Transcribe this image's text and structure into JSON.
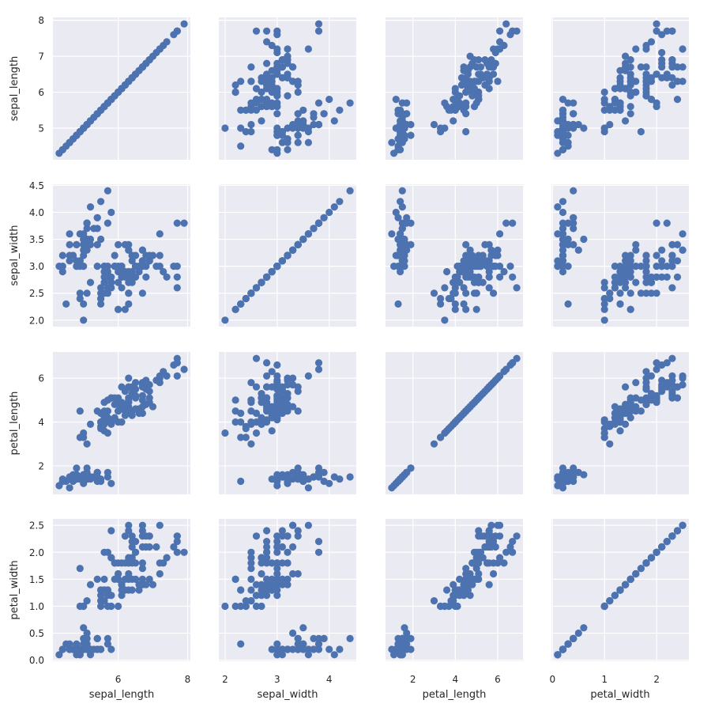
{
  "chart_data": {
    "type": "scatter",
    "layout": "pair-grid 4x4",
    "grid": true,
    "background_color": "#eaeaf2",
    "marker_color": "#4c72b0",
    "variables": [
      "sepal_length",
      "sepal_width",
      "petal_length",
      "petal_width"
    ],
    "limits": {
      "sepal_length": [
        4.12,
        8.08
      ],
      "sepal_width": [
        1.88,
        4.52
      ],
      "petal_length": [
        0.705,
        7.195
      ],
      "petal_width": [
        -0.02,
        2.62
      ]
    },
    "ticks": {
      "x": {
        "sepal_length": [
          "6",
          "8"
        ],
        "sepal_width": [
          "2",
          "3",
          "4"
        ],
        "petal_length": [
          "2",
          "4",
          "6"
        ],
        "petal_width": [
          "0",
          "1",
          "2"
        ]
      },
      "y": {
        "sepal_length": [
          "5",
          "6",
          "7",
          "8"
        ],
        "sepal_width": [
          "2.0",
          "2.5",
          "3.0",
          "3.5",
          "4.0",
          "4.5"
        ],
        "petal_length": [
          "2",
          "4",
          "6"
        ],
        "petal_width": [
          "0.0",
          "0.5",
          "1.0",
          "1.5",
          "2.0",
          "2.5"
        ]
      }
    },
    "data": {
      "sepal_length": [
        5.1,
        4.9,
        4.7,
        4.6,
        5.0,
        5.4,
        4.6,
        5.0,
        4.4,
        4.9,
        5.4,
        4.8,
        4.8,
        4.3,
        5.8,
        5.7,
        5.4,
        5.1,
        5.7,
        5.1,
        5.4,
        5.1,
        4.6,
        5.1,
        4.8,
        5.0,
        5.0,
        5.2,
        5.2,
        4.7,
        4.8,
        5.4,
        5.2,
        5.5,
        4.9,
        5.0,
        5.5,
        4.9,
        4.4,
        5.1,
        5.0,
        4.5,
        4.4,
        5.0,
        5.1,
        4.8,
        5.1,
        4.6,
        5.3,
        5.0,
        7.0,
        6.4,
        6.9,
        5.5,
        6.5,
        5.7,
        6.3,
        4.9,
        6.6,
        5.2,
        5.0,
        5.9,
        6.0,
        6.1,
        5.6,
        6.7,
        5.6,
        5.8,
        6.2,
        5.6,
        5.9,
        6.1,
        6.3,
        6.1,
        6.4,
        6.6,
        6.8,
        6.7,
        6.0,
        5.7,
        5.5,
        5.5,
        5.8,
        6.0,
        5.4,
        6.0,
        6.7,
        6.3,
        5.6,
        5.5,
        5.5,
        6.1,
        5.8,
        5.0,
        5.6,
        5.7,
        5.7,
        6.2,
        5.1,
        5.7,
        6.3,
        5.8,
        7.1,
        6.3,
        6.5,
        7.6,
        4.9,
        7.3,
        6.7,
        7.2,
        6.5,
        6.4,
        6.8,
        5.7,
        5.8,
        6.4,
        6.5,
        7.7,
        7.7,
        6.0,
        6.9,
        5.6,
        7.7,
        6.3,
        6.7,
        7.2,
        6.2,
        6.1,
        6.4,
        7.2,
        7.4,
        7.9,
        6.4,
        6.3,
        6.1,
        7.7,
        6.3,
        6.4,
        6.0,
        6.9,
        6.7,
        6.9,
        5.8,
        6.8,
        6.7,
        6.7,
        6.3,
        6.5,
        6.2,
        5.9
      ],
      "sepal_width": [
        3.5,
        3.0,
        3.2,
        3.1,
        3.6,
        3.9,
        3.4,
        3.4,
        2.9,
        3.1,
        3.7,
        3.4,
        3.0,
        3.0,
        4.0,
        4.4,
        3.9,
        3.5,
        3.8,
        3.8,
        3.4,
        3.7,
        3.6,
        3.3,
        3.4,
        3.0,
        3.4,
        3.5,
        3.4,
        3.2,
        3.1,
        3.4,
        4.1,
        4.2,
        3.1,
        3.2,
        3.5,
        3.6,
        3.0,
        3.4,
        3.5,
        2.3,
        3.2,
        3.5,
        3.8,
        3.0,
        3.8,
        3.2,
        3.7,
        3.3,
        3.2,
        3.2,
        3.1,
        2.3,
        2.8,
        2.8,
        3.3,
        2.4,
        2.9,
        2.7,
        2.0,
        3.0,
        2.2,
        2.9,
        2.9,
        3.1,
        3.0,
        2.7,
        2.2,
        2.5,
        3.2,
        2.8,
        2.5,
        2.8,
        2.9,
        3.0,
        2.8,
        3.0,
        2.9,
        2.6,
        2.4,
        2.4,
        2.7,
        2.7,
        3.0,
        3.4,
        3.1,
        2.3,
        3.0,
        2.5,
        2.6,
        3.0,
        2.6,
        2.3,
        2.7,
        3.0,
        2.9,
        2.9,
        2.5,
        2.8,
        3.3,
        2.7,
        3.0,
        2.9,
        3.0,
        3.0,
        2.5,
        2.9,
        2.5,
        3.6,
        3.2,
        2.7,
        3.0,
        2.5,
        2.8,
        3.2,
        3.0,
        3.8,
        2.6,
        2.2,
        3.2,
        2.8,
        2.8,
        2.7,
        3.3,
        3.2,
        2.8,
        3.0,
        2.8,
        3.0,
        2.8,
        3.8,
        2.8,
        2.8,
        2.6,
        3.0,
        3.4,
        3.1,
        3.0,
        3.1,
        3.1,
        3.1,
        2.7,
        3.2,
        3.3,
        3.0,
        2.5,
        3.0,
        3.4,
        3.0
      ],
      "petal_length": [
        1.4,
        1.4,
        1.3,
        1.5,
        1.4,
        1.7,
        1.4,
        1.5,
        1.4,
        1.5,
        1.5,
        1.6,
        1.4,
        1.1,
        1.2,
        1.5,
        1.3,
        1.4,
        1.7,
        1.5,
        1.7,
        1.5,
        1.0,
        1.7,
        1.9,
        1.6,
        1.6,
        1.5,
        1.4,
        1.6,
        1.6,
        1.5,
        1.5,
        1.4,
        1.5,
        1.2,
        1.3,
        1.4,
        1.3,
        1.5,
        1.3,
        1.3,
        1.3,
        1.6,
        1.9,
        1.4,
        1.6,
        1.4,
        1.5,
        1.4,
        4.7,
        4.5,
        4.9,
        4.0,
        4.6,
        4.5,
        4.7,
        3.3,
        4.6,
        3.9,
        3.5,
        4.2,
        4.0,
        4.7,
        3.6,
        4.4,
        4.5,
        4.1,
        4.5,
        3.9,
        4.8,
        4.0,
        4.9,
        4.7,
        4.3,
        4.4,
        4.8,
        5.0,
        4.5,
        3.5,
        3.8,
        3.7,
        3.9,
        5.1,
        4.5,
        4.5,
        4.7,
        4.4,
        4.1,
        4.0,
        4.4,
        4.6,
        4.0,
        3.3,
        4.2,
        4.2,
        4.2,
        4.3,
        3.0,
        4.1,
        6.0,
        5.1,
        5.9,
        5.6,
        5.8,
        6.6,
        4.5,
        6.3,
        5.8,
        6.1,
        5.1,
        5.3,
        5.5,
        5.0,
        5.1,
        5.3,
        5.5,
        6.7,
        6.9,
        5.0,
        5.7,
        4.9,
        6.7,
        4.9,
        5.7,
        6.0,
        4.8,
        4.9,
        5.6,
        5.8,
        6.1,
        6.4,
        5.6,
        5.1,
        5.6,
        6.1,
        5.6,
        5.5,
        4.8,
        5.4,
        5.6,
        5.1,
        5.1,
        5.9,
        5.7,
        5.2,
        5.0,
        5.2,
        5.4,
        5.1
      ],
      "petal_width": [
        0.2,
        0.2,
        0.2,
        0.2,
        0.2,
        0.4,
        0.3,
        0.2,
        0.2,
        0.1,
        0.2,
        0.2,
        0.1,
        0.1,
        0.2,
        0.4,
        0.4,
        0.3,
        0.3,
        0.3,
        0.2,
        0.4,
        0.2,
        0.5,
        0.2,
        0.2,
        0.4,
        0.2,
        0.2,
        0.2,
        0.2,
        0.4,
        0.1,
        0.2,
        0.2,
        0.2,
        0.2,
        0.1,
        0.2,
        0.2,
        0.3,
        0.3,
        0.2,
        0.6,
        0.4,
        0.3,
        0.2,
        0.2,
        0.2,
        0.2,
        1.4,
        1.5,
        1.5,
        1.3,
        1.5,
        1.3,
        1.6,
        1.0,
        1.3,
        1.4,
        1.0,
        1.5,
        1.0,
        1.4,
        1.3,
        1.4,
        1.5,
        1.0,
        1.5,
        1.1,
        1.8,
        1.3,
        1.5,
        1.2,
        1.3,
        1.4,
        1.4,
        1.7,
        1.5,
        1.0,
        1.1,
        1.0,
        1.2,
        1.6,
        1.5,
        1.6,
        1.5,
        1.3,
        1.3,
        1.3,
        1.2,
        1.4,
        1.2,
        1.0,
        1.3,
        1.2,
        1.3,
        1.3,
        1.1,
        1.3,
        2.5,
        1.9,
        2.1,
        1.8,
        2.2,
        2.1,
        1.7,
        1.8,
        1.8,
        2.5,
        2.0,
        1.9,
        2.1,
        2.0,
        2.4,
        2.3,
        1.8,
        2.2,
        2.3,
        1.5,
        2.3,
        2.0,
        2.0,
        1.8,
        2.1,
        1.8,
        1.8,
        1.8,
        2.1,
        1.6,
        1.9,
        2.0,
        2.2,
        1.5,
        1.4,
        2.3,
        2.4,
        1.8,
        1.8,
        2.1,
        2.4,
        2.3,
        1.9,
        2.3,
        2.5,
        2.3,
        1.9,
        2.0,
        2.3,
        1.8
      ]
    }
  }
}
